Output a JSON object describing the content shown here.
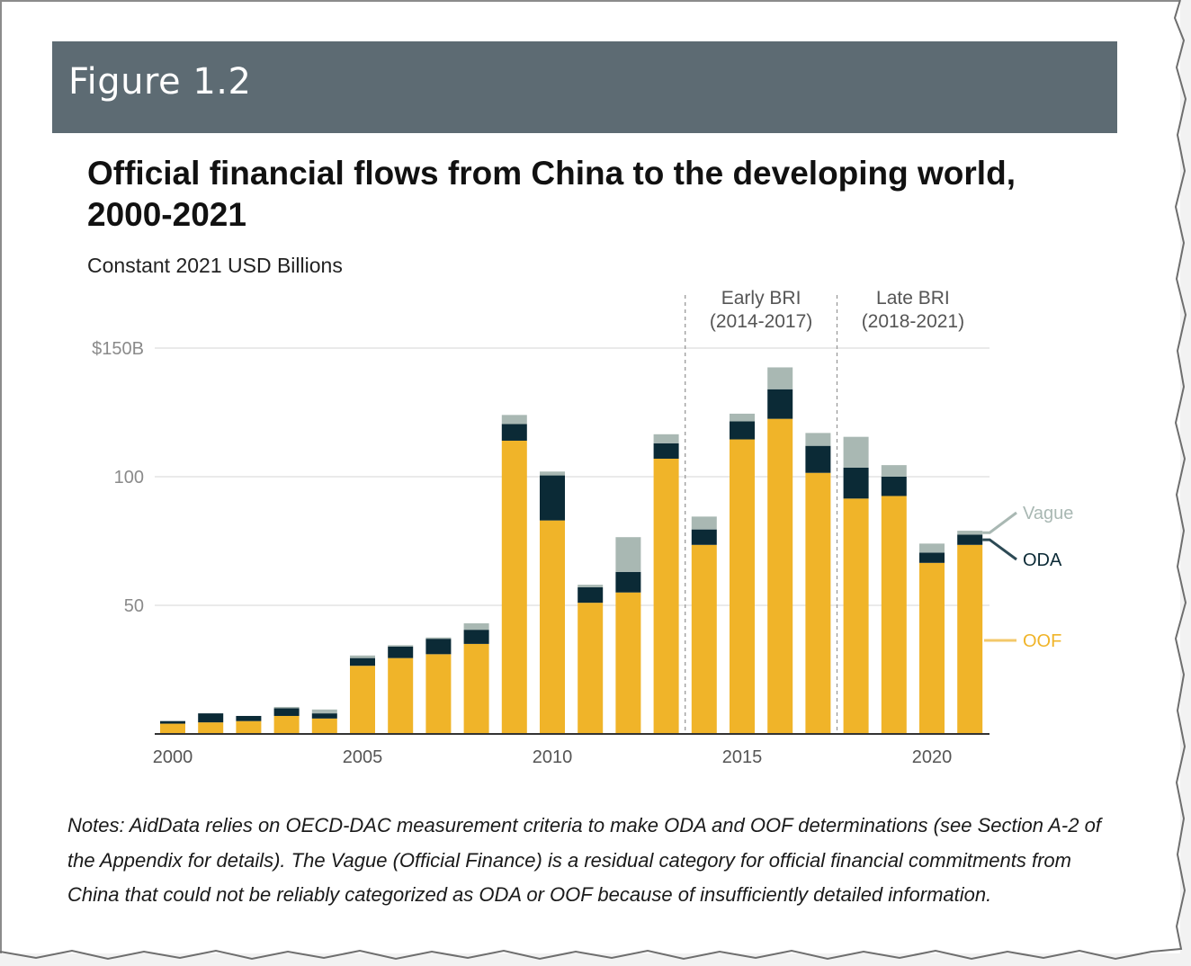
{
  "figure_label": "Figure 1.2",
  "title": "Official financial flows from China to the developing world, 2000-2021",
  "subtitle": "Constant 2021 USD Billions",
  "notes": "Notes: AidData relies on OECD-DAC measurement criteria to make ODA and OOF determinations (see Section A-2 of the Appendix for details). The Vague (Official Finance) is a residual category for official financial commitments from China that could not be reliably categorized as ODA or OOF because of insufficiently detailed information.",
  "colors": {
    "OOF": "#f0b429",
    "ODA": "#0b2a36",
    "Vague": "#a9b8b3",
    "grid": "#e3e3e3",
    "axis": "#333333"
  },
  "chart_data": {
    "type": "bar",
    "stacked": true,
    "categories": [
      2000,
      2001,
      2002,
      2003,
      2004,
      2005,
      2006,
      2007,
      2008,
      2009,
      2010,
      2011,
      2012,
      2013,
      2014,
      2015,
      2016,
      2017,
      2018,
      2019,
      2020,
      2021
    ],
    "series": [
      {
        "name": "OOF",
        "values": [
          4,
          4.5,
          5,
          7,
          6,
          26.5,
          29.5,
          31,
          35,
          114,
          83,
          51,
          55,
          107,
          73.5,
          114.5,
          122.5,
          101.5,
          91.5,
          92.5,
          66.5,
          73.5
        ]
      },
      {
        "name": "ODA",
        "values": [
          1,
          3.5,
          2,
          3,
          2,
          3,
          4.5,
          6,
          5.5,
          6.5,
          17.5,
          6,
          8,
          6,
          6,
          7,
          11.5,
          10.5,
          12,
          7.5,
          4,
          4
        ]
      },
      {
        "name": "Vague",
        "values": [
          0,
          0,
          0,
          0.5,
          1.5,
          1,
          0.5,
          0.5,
          2.5,
          3.5,
          1.5,
          1,
          13.5,
          3.5,
          5,
          3,
          8.5,
          5,
          12,
          4.5,
          3.5,
          1.5
        ]
      }
    ],
    "ylim": [
      0,
      150
    ],
    "yticks": [
      50,
      100,
      150
    ],
    "ytick_labels": [
      "50",
      "100",
      "$150B"
    ],
    "xticks": [
      2000,
      2005,
      2010,
      2015,
      2020
    ],
    "xtick_labels": [
      "2000",
      "2005",
      "2010",
      "2015",
      "2020"
    ],
    "grid": true,
    "legend_labels": [
      "Vague",
      "ODA",
      "OOF"
    ],
    "legend": "right (direct labels)",
    "annotations": [
      {
        "line1": "Early BRI",
        "line2": "(2014-2017)",
        "x": 2014
      },
      {
        "line1": "Late BRI",
        "line2": "(2018-2021)",
        "x": 2018
      }
    ]
  }
}
